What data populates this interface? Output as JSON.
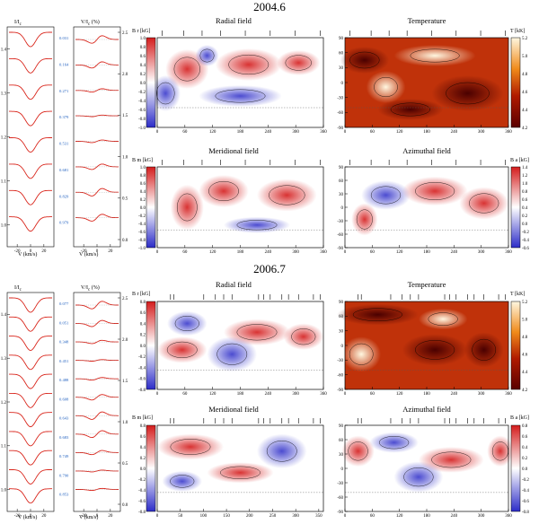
{
  "figure": {
    "years": [
      "2004.6",
      "2006.7"
    ],
    "panels": {
      "radial": "Radial field",
      "temperature": "Temperature",
      "meridional": "Meridional field",
      "azimuthal": "Azimuthal field"
    },
    "profile_labels": {
      "intensity_y": "I/I",
      "intensity_sub": "c",
      "stokesv_y": "V/I",
      "stokesv_sub": "c",
      "stokesv_unit": "(%)",
      "xlabel": "V (km/s)"
    },
    "colorbar_labels": {
      "br": "B r [kG]",
      "bm": "B m [kG]",
      "ba": "B a [kG]",
      "t": "T [kK]"
    },
    "phases_2004": [
      "0.031",
      "0.164",
      "0.271",
      "0.379",
      "0.531",
      "0.681",
      "0.829",
      "0.979"
    ],
    "phases_2006": [
      "0.077",
      "0.051",
      "0.348",
      "0.451",
      "0.488",
      "0.608",
      "0.643",
      "0.683",
      "0.749",
      "0.790",
      "0.853"
    ],
    "colors": {
      "profile_fit": "#d9261c",
      "phase_text": "#1f5fbf",
      "field_negative": "#2c2cc8",
      "field_positive": "#d41c1c",
      "temperature_hot": "#fff7e0",
      "temperature_cool": "#5a0000"
    }
  },
  "chart_data": [
    {
      "type": "line",
      "title": "",
      "xlabel": "V (km/s)",
      "ylabel": "I/Ic",
      "xticks": [
        -20,
        0,
        20
      ],
      "yticks": [
        1.0,
        1.1,
        1.2,
        1.3,
        1.4
      ],
      "panel_year": "2004.6"
    },
    {
      "type": "line",
      "title": "",
      "xlabel": "V (km/s)",
      "ylabel": "V/Ic (%)",
      "xticks": [
        -20,
        0,
        20
      ],
      "yticks": [
        0.0,
        0.5,
        1.0,
        1.5,
        2.0,
        2.5
      ],
      "panel_year": "2004.6"
    },
    {
      "type": "heatmap",
      "title": "Radial field",
      "xlabel": "",
      "ylabel": "",
      "xticks": [
        0,
        60,
        120,
        180,
        240,
        300,
        360
      ],
      "colorbar_ticks": [
        -1.0,
        -0.8,
        -0.6,
        -0.4,
        -0.2,
        0.0,
        0.2,
        0.4,
        0.6,
        0.8,
        1.0
      ],
      "panel_year": "2004.6"
    },
    {
      "type": "heatmap",
      "title": "Temperature",
      "xlabel": "",
      "ylabel": "",
      "xticks": [
        0,
        60,
        120,
        180,
        240,
        300,
        360
      ],
      "yticks": [
        -90,
        -60,
        -30,
        0,
        30,
        60,
        90
      ],
      "colorbar_ticks": [
        4.2,
        4.4,
        4.6,
        4.8,
        5.0,
        5.2
      ],
      "panel_year": "2004.6"
    },
    {
      "type": "heatmap",
      "title": "Meridional field",
      "xlabel": "",
      "ylabel": "",
      "xticks": [
        0,
        60,
        120,
        180,
        240,
        300,
        360
      ],
      "colorbar_ticks": [
        -1.0,
        -0.8,
        -0.6,
        -0.4,
        -0.2,
        0.0,
        0.2,
        0.4,
        0.6,
        0.8,
        1.0
      ],
      "panel_year": "2004.6"
    },
    {
      "type": "heatmap",
      "title": "Azimuthal field",
      "xlabel": "",
      "ylabel": "",
      "xticks": [
        0,
        60,
        120,
        180,
        240,
        300,
        360
      ],
      "yticks": [
        -90,
        -60,
        -30,
        0,
        30,
        60,
        90
      ],
      "colorbar_ticks": [
        -0.6,
        -0.4,
        -0.2,
        0.0,
        0.2,
        0.4,
        0.6,
        0.8,
        1.0,
        1.2,
        1.4
      ],
      "panel_year": "2004.6"
    },
    {
      "type": "line",
      "title": "",
      "xlabel": "V (km/s)",
      "ylabel": "I/Ic",
      "xticks": [
        -20,
        0,
        20
      ],
      "yticks": [
        1.0,
        1.1,
        1.2,
        1.3,
        1.4
      ],
      "panel_year": "2006.7"
    },
    {
      "type": "line",
      "title": "",
      "xlabel": "V (km/s)",
      "ylabel": "V/Ic (%)",
      "xticks": [
        -20,
        0,
        20
      ],
      "yticks": [
        0.0,
        0.5,
        1.0,
        1.5,
        2.0,
        2.5
      ],
      "panel_year": "2006.7"
    },
    {
      "type": "heatmap",
      "title": "Radial field",
      "xlabel": "",
      "ylabel": "",
      "xticks": [
        0,
        60,
        120,
        180,
        240,
        300,
        360
      ],
      "colorbar_ticks": [
        -0.8,
        -0.6,
        -0.4,
        -0.2,
        0.0,
        0.2,
        0.4,
        0.6,
        0.8
      ],
      "panel_year": "2006.7"
    },
    {
      "type": "heatmap",
      "title": "Temperature",
      "xlabel": "",
      "ylabel": "",
      "xticks": [
        0,
        60,
        120,
        180,
        240,
        300,
        360
      ],
      "yticks": [
        -90,
        -60,
        -30,
        0,
        30,
        60,
        90
      ],
      "colorbar_ticks": [
        4.2,
        4.4,
        4.6,
        4.8,
        5.0,
        5.2
      ],
      "panel_year": "2006.7"
    },
    {
      "type": "heatmap",
      "title": "Meridional field",
      "xlabel": "",
      "ylabel": "",
      "xticks": [
        0,
        50,
        100,
        150,
        200,
        250,
        300,
        350
      ],
      "colorbar_ticks": [
        -0.8,
        -0.6,
        -0.4,
        -0.2,
        0.0,
        0.2,
        0.4,
        0.6,
        0.8
      ],
      "panel_year": "2006.7"
    },
    {
      "type": "heatmap",
      "title": "Azimuthal field",
      "xlabel": "",
      "ylabel": "",
      "xticks": [
        0,
        60,
        120,
        180,
        240,
        300,
        360
      ],
      "yticks": [
        -90,
        -60,
        -30,
        0,
        30,
        60,
        90
      ],
      "colorbar_ticks": [
        -0.8,
        -0.6,
        -0.4,
        -0.2,
        0.0,
        0.2,
        0.4,
        0.6,
        0.8
      ],
      "panel_year": "2006.7"
    }
  ]
}
